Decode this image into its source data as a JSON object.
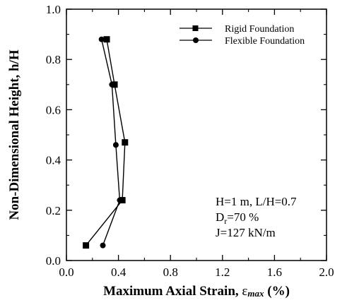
{
  "chart_data": {
    "type": "line",
    "xlabel": "Maximum Axial Strain, ",
    "xlabel_symbol": "ε",
    "xlabel_symbol_sub": "max",
    "xlabel_unit": " (%)",
    "ylabel": "Non-Dimensional Height, h/H",
    "xlim": [
      0.0,
      2.0
    ],
    "ylim": [
      0.0,
      1.0
    ],
    "x_ticks": [
      "0.0",
      "0.4",
      "0.8",
      "1.2",
      "1.6",
      "2.0"
    ],
    "y_ticks": [
      "0.0",
      "0.2",
      "0.4",
      "0.6",
      "0.8",
      "1.0"
    ],
    "grid": false,
    "legend_position": "top-right",
    "series": [
      {
        "name": "Rigid Foundation",
        "marker": "square",
        "color": "#000000",
        "points": [
          {
            "x": 0.15,
            "y": 0.06
          },
          {
            "x": 0.43,
            "y": 0.24
          },
          {
            "x": 0.45,
            "y": 0.47
          },
          {
            "x": 0.37,
            "y": 0.7
          },
          {
            "x": 0.31,
            "y": 0.88
          }
        ]
      },
      {
        "name": "Flexible Foundation",
        "marker": "circle",
        "color": "#000000",
        "points": [
          {
            "x": 0.28,
            "y": 0.06
          },
          {
            "x": 0.41,
            "y": 0.24
          },
          {
            "x": 0.38,
            "y": 0.46
          },
          {
            "x": 0.35,
            "y": 0.7
          },
          {
            "x": 0.27,
            "y": 0.88
          }
        ]
      }
    ],
    "annotations": {
      "line1": "H=1 m, L/H=0.7",
      "line2_pre": "D",
      "line2_sub": "r",
      "line2_post": "=70 %",
      "line3": "J=127 kN/m"
    }
  }
}
